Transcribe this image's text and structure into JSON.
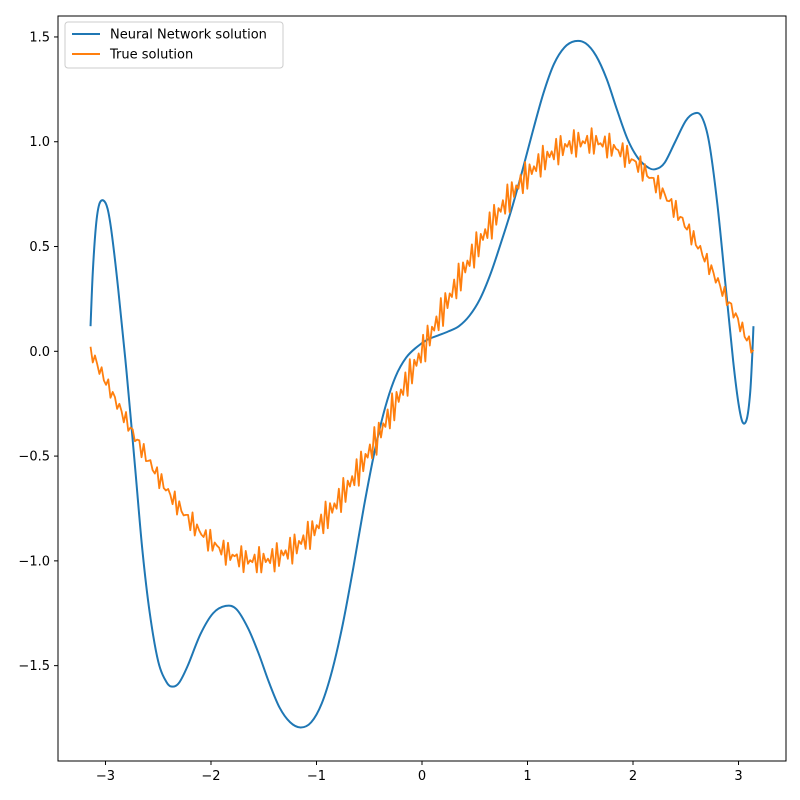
{
  "chart_data": {
    "type": "line",
    "title": "",
    "xlabel": "",
    "ylabel": "",
    "xlim": [
      -3.45,
      3.45
    ],
    "ylim": [
      -1.955,
      1.6
    ],
    "x_ticks": [
      -3,
      -2,
      -1,
      0,
      1,
      2,
      3
    ],
    "x_tick_labels": [
      "−3",
      "−2",
      "−1",
      "0",
      "1",
      "2",
      "3"
    ],
    "y_ticks": [
      -1.5,
      -1.0,
      -0.5,
      0.0,
      0.5,
      1.0,
      1.5
    ],
    "y_tick_labels": [
      "−1.5",
      "−1.0",
      "−0.5",
      "0.0",
      "0.5",
      "1.0",
      "1.5"
    ],
    "grid": false,
    "legend_position": "top-left",
    "noise": {
      "amplitude": 0.08,
      "frequency": 150
    },
    "series": [
      {
        "name": "Neural Network solution",
        "color": "#1f77b4",
        "points": [
          [
            -3.1416,
            0.12
          ],
          [
            -3.12,
            0.38
          ],
          [
            -3.09,
            0.6
          ],
          [
            -3.06,
            0.7
          ],
          [
            -3.02,
            0.72
          ],
          [
            -2.98,
            0.68
          ],
          [
            -2.94,
            0.56
          ],
          [
            -2.88,
            0.3
          ],
          [
            -2.8,
            -0.1
          ],
          [
            -2.72,
            -0.55
          ],
          [
            -2.65,
            -0.95
          ],
          [
            -2.58,
            -1.25
          ],
          [
            -2.5,
            -1.48
          ],
          [
            -2.42,
            -1.58
          ],
          [
            -2.36,
            -1.6
          ],
          [
            -2.3,
            -1.58
          ],
          [
            -2.22,
            -1.5
          ],
          [
            -2.1,
            -1.35
          ],
          [
            -1.98,
            -1.25
          ],
          [
            -1.86,
            -1.215
          ],
          [
            -1.76,
            -1.23
          ],
          [
            -1.65,
            -1.32
          ],
          [
            -1.55,
            -1.44
          ],
          [
            -1.45,
            -1.58
          ],
          [
            -1.35,
            -1.7
          ],
          [
            -1.25,
            -1.77
          ],
          [
            -1.15,
            -1.795
          ],
          [
            -1.05,
            -1.77
          ],
          [
            -0.95,
            -1.68
          ],
          [
            -0.85,
            -1.52
          ],
          [
            -0.75,
            -1.3
          ],
          [
            -0.65,
            -1.03
          ],
          [
            -0.55,
            -0.74
          ],
          [
            -0.45,
            -0.48
          ],
          [
            -0.35,
            -0.27
          ],
          [
            -0.25,
            -0.12
          ],
          [
            -0.15,
            -0.03
          ],
          [
            -0.05,
            0.02
          ],
          [
            0.05,
            0.055
          ],
          [
            0.15,
            0.075
          ],
          [
            0.25,
            0.095
          ],
          [
            0.35,
            0.12
          ],
          [
            0.45,
            0.17
          ],
          [
            0.55,
            0.25
          ],
          [
            0.65,
            0.37
          ],
          [
            0.75,
            0.52
          ],
          [
            0.85,
            0.68
          ],
          [
            0.95,
            0.86
          ],
          [
            1.05,
            1.05
          ],
          [
            1.15,
            1.23
          ],
          [
            1.25,
            1.37
          ],
          [
            1.35,
            1.45
          ],
          [
            1.45,
            1.48
          ],
          [
            1.55,
            1.47
          ],
          [
            1.65,
            1.41
          ],
          [
            1.75,
            1.3
          ],
          [
            1.85,
            1.15
          ],
          [
            1.95,
            1.01
          ],
          [
            2.05,
            0.92
          ],
          [
            2.15,
            0.875
          ],
          [
            2.22,
            0.87
          ],
          [
            2.3,
            0.9
          ],
          [
            2.4,
            1.0
          ],
          [
            2.5,
            1.1
          ],
          [
            2.58,
            1.135
          ],
          [
            2.65,
            1.12
          ],
          [
            2.72,
            1.0
          ],
          [
            2.8,
            0.7
          ],
          [
            2.88,
            0.3
          ],
          [
            2.95,
            -0.05
          ],
          [
            3.0,
            -0.25
          ],
          [
            3.04,
            -0.34
          ],
          [
            3.08,
            -0.32
          ],
          [
            3.11,
            -0.2
          ],
          [
            3.13,
            -0.02
          ],
          [
            3.1416,
            0.12
          ]
        ]
      },
      {
        "name": "True solution",
        "color": "#ff7f0e",
        "function": "sin",
        "x_range": [
          -3.1416,
          3.1416
        ],
        "samples": 300
      }
    ]
  }
}
